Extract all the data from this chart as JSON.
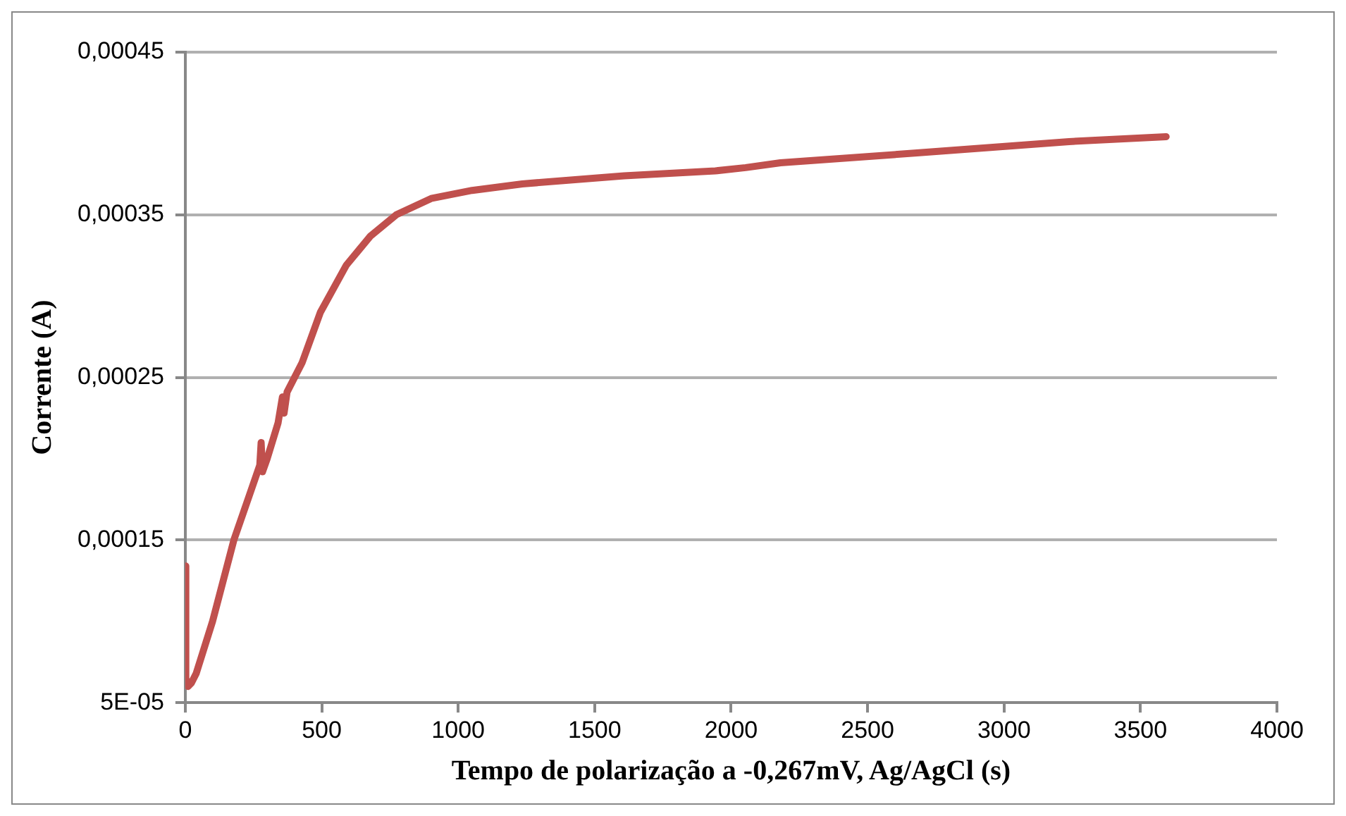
{
  "chart_data": {
    "type": "line",
    "xlabel": "Tempo de polarização a -0,267mV, Ag/AgCl (s)",
    "ylabel": "Corrente (A)",
    "x": [
      0,
      2,
      10,
      22,
      40,
      100,
      178,
      240,
      273,
      278,
      283,
      300,
      340,
      356,
      362,
      373,
      428,
      495,
      590,
      679,
      773,
      901,
      1051,
      1235,
      1608,
      1942,
      2053,
      2181,
      2681,
      3238,
      3594
    ],
    "series": [
      {
        "color": "#c0504d",
        "values": [
          0.000134,
          6.5e-05,
          6e-05,
          6.2e-05,
          6.8e-05,
          0.0001,
          0.00015,
          0.00018,
          0.000196,
          0.00021,
          0.000192,
          0.0002,
          0.000222,
          0.000238,
          0.000228,
          0.000241,
          0.000259,
          0.00029,
          0.000319,
          0.000337,
          0.00035,
          0.00036,
          0.000365,
          0.000369,
          0.000374,
          0.000377,
          0.000379,
          0.000382,
          0.000388,
          0.000395,
          0.000398
        ]
      }
    ],
    "xlim": [
      0,
      4000
    ],
    "xticks": [
      0,
      500,
      1000,
      1500,
      2000,
      2500,
      3000,
      3500,
      4000
    ],
    "ylim": [
      5e-05,
      0.00045
    ],
    "yticks": [
      {
        "value": 5e-05,
        "label": "5E-05"
      },
      {
        "value": 0.00015,
        "label": "0,00015"
      },
      {
        "value": 0.00025,
        "label": "0,00025"
      },
      {
        "value": 0.00035,
        "label": "0,00035"
      },
      {
        "value": 0.00045,
        "label": "0,00045"
      }
    ],
    "grid": "y",
    "legend": false,
    "marker": "none",
    "line_style": "solid"
  }
}
